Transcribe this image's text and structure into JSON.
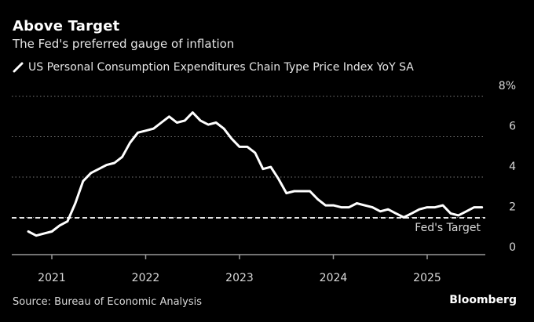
{
  "header": {
    "title": "Above Target",
    "subtitle": "The Fed's preferred gauge of inflation"
  },
  "legend": {
    "label": "US Personal Consumption Expenditures Chain Type Price Index YoY SA"
  },
  "footer": {
    "source": "Source: Bureau of Economic Analysis",
    "brand": "Bloomberg"
  },
  "chart_data": {
    "type": "line",
    "title": "Above Target",
    "subtitle": "The Fed's preferred gauge of inflation",
    "xlabel": "",
    "ylabel": "",
    "ylim": [
      0,
      8
    ],
    "yticks": [
      "0",
      "2",
      "4",
      "6",
      "8%"
    ],
    "ytick_values": [
      0,
      2,
      4,
      6,
      8
    ],
    "xticks": [
      "2021",
      "2022",
      "2023",
      "2024",
      "2025"
    ],
    "grid": true,
    "legend_position": "top-left",
    "reference_line": {
      "value": 2,
      "label": "Fed's Target"
    },
    "series": [
      {
        "name": "US Personal Consumption Expenditures Chain Type Price Index YoY SA",
        "x": [
          "2020-10",
          "2020-11",
          "2020-12",
          "2021-01",
          "2021-02",
          "2021-03",
          "2021-04",
          "2021-05",
          "2021-06",
          "2021-07",
          "2021-08",
          "2021-09",
          "2021-10",
          "2021-11",
          "2021-12",
          "2022-01",
          "2022-02",
          "2022-03",
          "2022-04",
          "2022-05",
          "2022-06",
          "2022-07",
          "2022-08",
          "2022-09",
          "2022-10",
          "2022-11",
          "2022-12",
          "2023-01",
          "2023-02",
          "2023-03",
          "2023-04",
          "2023-05",
          "2023-06",
          "2023-07",
          "2023-08",
          "2023-09",
          "2023-10",
          "2023-11",
          "2023-12",
          "2024-01",
          "2024-02",
          "2024-03",
          "2024-04",
          "2024-05",
          "2024-06",
          "2024-07",
          "2024-08",
          "2024-09",
          "2024-10",
          "2024-11",
          "2024-12",
          "2025-01",
          "2025-02",
          "2025-03",
          "2025-04",
          "2025-05",
          "2025-06",
          "2025-07",
          "2025-08"
        ],
        "values": [
          1.3,
          1.1,
          1.2,
          1.3,
          1.6,
          1.8,
          2.7,
          3.8,
          4.2,
          4.4,
          4.6,
          4.7,
          5.0,
          5.7,
          6.2,
          6.3,
          6.4,
          6.7,
          7.0,
          6.7,
          6.8,
          7.2,
          6.8,
          6.6,
          6.7,
          6.4,
          5.9,
          5.5,
          5.5,
          5.2,
          4.4,
          4.5,
          3.9,
          3.2,
          3.3,
          3.3,
          3.3,
          2.9,
          2.6,
          2.6,
          2.5,
          2.5,
          2.7,
          2.6,
          2.5,
          2.3,
          2.4,
          2.2,
          2.0,
          2.2,
          2.4,
          2.5,
          2.5,
          2.6,
          2.2,
          2.1,
          2.3,
          2.5,
          2.5
        ]
      }
    ]
  }
}
